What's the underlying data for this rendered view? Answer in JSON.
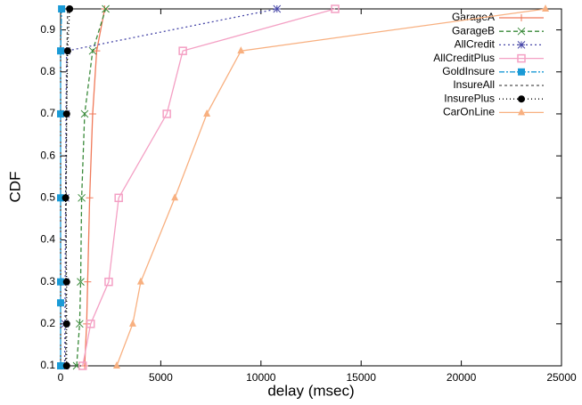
{
  "chart_data": {
    "type": "line",
    "x_label": "delay (msec)",
    "y_label": "CDF",
    "xlim": [
      0,
      25000
    ],
    "xticks": [
      0,
      5000,
      10000,
      15000,
      20000,
      25000
    ],
    "ylim": [
      0.1,
      0.95
    ],
    "yticks": [
      0.1,
      0.2,
      0.3,
      0.4,
      0.5,
      0.6,
      0.7,
      0.8,
      0.9
    ],
    "legend": "top-right",
    "series": [
      {
        "name": "GarageA",
        "color": "#f07a5a",
        "marker": "plus",
        "dash": "none",
        "x": [
          1200,
          1300,
          1350,
          1450,
          1600,
          1800,
          2200
        ],
        "values": [
          0.1,
          0.2,
          0.3,
          0.5,
          0.7,
          0.85,
          0.95
        ]
      },
      {
        "name": "GarageB",
        "color": "#3a8a3a",
        "marker": "cross",
        "dash": "5,3",
        "x": [
          800,
          950,
          1000,
          1050,
          1200,
          1600,
          2250
        ],
        "values": [
          0.1,
          0.2,
          0.3,
          0.5,
          0.7,
          0.85,
          0.95
        ]
      },
      {
        "name": "AllCredit",
        "color": "#4848a8",
        "marker": "star",
        "dash": "2,3",
        "x": [
          200,
          220,
          230,
          250,
          270,
          300,
          10800
        ],
        "values": [
          0.1,
          0.2,
          0.3,
          0.5,
          0.7,
          0.85,
          0.95
        ]
      },
      {
        "name": "AllCreditPlus",
        "color": "#f4a0c4",
        "marker": "square-open",
        "dash": "none",
        "x": [
          1100,
          1500,
          2400,
          2900,
          5300,
          6100,
          13700
        ],
        "values": [
          0.1,
          0.2,
          0.3,
          0.5,
          0.7,
          0.85,
          0.95
        ]
      },
      {
        "name": "GoldInsure",
        "color": "#1a9ad6",
        "marker": "square",
        "dash": "6,2,2,2",
        "x": [
          0,
          0,
          0,
          0,
          0,
          0,
          50
        ],
        "values": [
          0.1,
          0.25,
          0.3,
          0.5,
          0.7,
          0.85,
          0.95
        ]
      },
      {
        "name": "InsureAll",
        "color": "#505050",
        "marker": "none",
        "dash": "3,3",
        "x": [
          250,
          260,
          270,
          280,
          300,
          320,
          350
        ],
        "values": [
          0.1,
          0.2,
          0.3,
          0.5,
          0.7,
          0.85,
          0.95
        ]
      },
      {
        "name": "InsurePlus",
        "color": "#000000",
        "marker": "circle",
        "dash": "1,3",
        "x": [
          300,
          300,
          300,
          250,
          300,
          350,
          450
        ],
        "values": [
          0.1,
          0.2,
          0.3,
          0.5,
          0.7,
          0.85,
          0.95
        ]
      },
      {
        "name": "CarOnLine",
        "color": "#f8b080",
        "marker": "triangle",
        "dash": "none",
        "x": [
          2800,
          3600,
          4000,
          5700,
          7300,
          9000,
          24200
        ],
        "values": [
          0.1,
          0.2,
          0.3,
          0.5,
          0.7,
          0.85,
          0.95
        ]
      }
    ]
  }
}
